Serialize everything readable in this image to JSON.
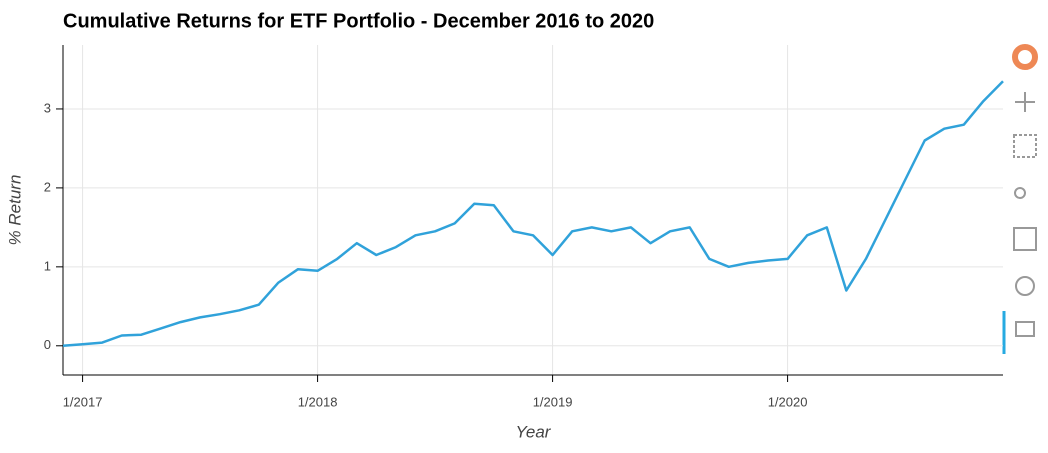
{
  "chart_data": {
    "type": "line",
    "title": "Cumulative Returns for ETF Portfolio - December 2016 to 2020",
    "x_label": "Year",
    "y_label": "% Return",
    "x": [
      "12/2016",
      "1/2017",
      "2/2017",
      "3/2017",
      "4/2017",
      "5/2017",
      "6/2017",
      "7/2017",
      "8/2017",
      "9/2017",
      "10/2017",
      "11/2017",
      "12/2017",
      "1/2018",
      "2/2018",
      "3/2018",
      "4/2018",
      "5/2018",
      "6/2018",
      "7/2018",
      "8/2018",
      "9/2018",
      "10/2018",
      "11/2018",
      "12/2018",
      "1/2019",
      "2/2019",
      "3/2019",
      "4/2019",
      "5/2019",
      "6/2019",
      "7/2019",
      "8/2019",
      "9/2019",
      "10/2019",
      "11/2019",
      "12/2019",
      "1/2020",
      "2/2020",
      "3/2020",
      "4/2020",
      "5/2020",
      "6/2020",
      "7/2020",
      "8/2020",
      "9/2020",
      "10/2020",
      "11/2020",
      "12/2020"
    ],
    "series": [
      {
        "name": "Cumulative Returns",
        "color": "#30a2da",
        "values": [
          0,
          0.02,
          0.04,
          0.13,
          0.14,
          0.22,
          0.3,
          0.36,
          0.4,
          0.45,
          0.52,
          0.8,
          0.97,
          0.95,
          1.1,
          1.3,
          1.15,
          1.25,
          1.4,
          1.45,
          1.55,
          1.8,
          1.78,
          1.45,
          1.4,
          1.15,
          1.45,
          1.5,
          1.45,
          1.5,
          1.3,
          1.45,
          1.5,
          1.1,
          1.0,
          1.05,
          1.08,
          1.1,
          1.4,
          1.5,
          0.7,
          1.1,
          1.6,
          2.1,
          2.6,
          2.75,
          2.8,
          3.1,
          3.35
        ]
      }
    ],
    "xlim": [
      "12/2016",
      "12/2020"
    ],
    "xticks": [
      "1/2017",
      "1/2018",
      "1/2019",
      "1/2020"
    ],
    "ylim": [
      -0.37,
      3.81
    ],
    "yticks": [
      0,
      1,
      2,
      3
    ],
    "grid": true
  }
}
